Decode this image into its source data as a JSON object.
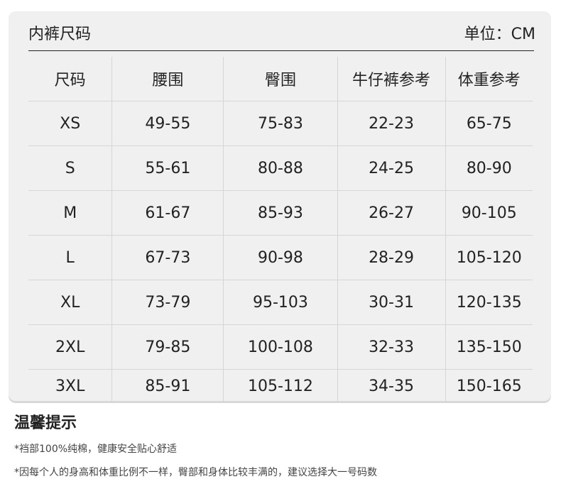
{
  "header": {
    "title": "内裤尺码",
    "unit": "单位：CM"
  },
  "table": {
    "columns": [
      "尺码",
      "腰围",
      "臀围",
      "牛仔裤参考",
      "体重参考"
    ],
    "rows": [
      [
        "XS",
        "49-55",
        "75-83",
        "22-23",
        "65-75"
      ],
      [
        "S",
        "55-61",
        "80-88",
        "24-25",
        "80-90"
      ],
      [
        "M",
        "61-67",
        "85-93",
        "26-27",
        "90-105"
      ],
      [
        "L",
        "67-73",
        "90-98",
        "28-29",
        "105-120"
      ],
      [
        "XL",
        "73-79",
        "95-103",
        "30-31",
        "120-135"
      ],
      [
        "2XL",
        "79-85",
        "100-108",
        "32-33",
        "135-150"
      ],
      [
        "3XL",
        "85-91",
        "105-112",
        "34-35",
        "150-165"
      ]
    ]
  },
  "tips": {
    "title": "温馨提示",
    "items": [
      "*裆部100%纯棉，健康安全贴心舒适",
      "*因每个人的身高和体重比例不一样，臀部和身体比较丰满的，建议选择大一号码数"
    ]
  }
}
